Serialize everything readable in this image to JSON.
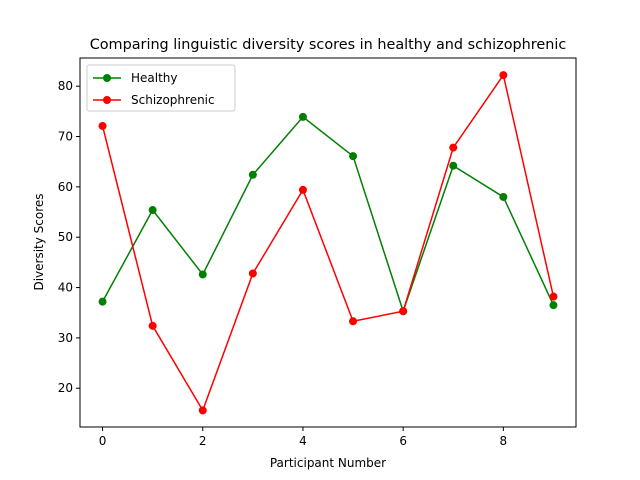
{
  "chart_data": {
    "type": "line",
    "title": "Comparing linguistic diversity scores in healthy and schizophrenic",
    "xlabel": "Participant Number",
    "ylabel": "Diversity Scores",
    "x": [
      0,
      1,
      2,
      3,
      4,
      5,
      6,
      7,
      8,
      9
    ],
    "xlim": [
      -0.45,
      9.45
    ],
    "ylim": [
      12.3,
      85.6
    ],
    "xticks": [
      0,
      2,
      4,
      6,
      8
    ],
    "yticks": [
      20,
      30,
      40,
      50,
      60,
      70,
      80
    ],
    "grid": false,
    "legend_position": "top-left",
    "series": [
      {
        "name": "Healthy",
        "color": "#008000",
        "marker": "circle",
        "values": [
          37.2,
          55.4,
          42.6,
          62.4,
          73.9,
          66.1,
          35.3,
          64.2,
          58.0,
          36.5
        ]
      },
      {
        "name": "Schizophrenic",
        "color": "#ff0000",
        "marker": "circle",
        "values": [
          72.1,
          32.4,
          15.6,
          42.8,
          59.4,
          33.3,
          35.3,
          67.8,
          82.2,
          38.2
        ]
      }
    ]
  }
}
